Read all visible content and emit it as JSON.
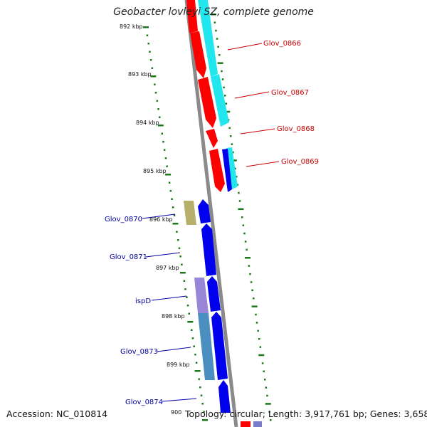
{
  "title": "Geobacter lovleyi SZ, complete genome",
  "accession": "Accession: NC_010814",
  "summary": "Topology: circular; Length: 3,917,761 bp; Genes: 3,658",
  "colors": {
    "backbone": "#8a8a8a",
    "tick": "#1a7a1a",
    "forward_gene": "#ff0000",
    "reverse_gene": "#0000ee",
    "forward_label": "#cc0000",
    "reverse_label": "#0000aa",
    "feature_cyan": "#22e6ee",
    "feature_olive": "#b6b06a",
    "feature_purple": "#9a86d8",
    "feature_steel": "#4a8fc0"
  },
  "ticks": [
    {
      "label": "892 kbp"
    },
    {
      "label": "893 kbp"
    },
    {
      "label": "894 kbp"
    },
    {
      "label": "895 kbp"
    },
    {
      "label": "896 kbp"
    },
    {
      "label": "897 kbp"
    },
    {
      "label": "898 kbp"
    },
    {
      "label": "899 kbp"
    },
    {
      "label": "900"
    }
  ],
  "gene_labels": {
    "forward": [
      "Glov_0866",
      "Glov_0867",
      "Glov_0868",
      "Glov_0869"
    ],
    "reverse": [
      "Glov_0870",
      "Glov_0871",
      "ispD",
      "Glov_0873",
      "Glov_0874"
    ]
  }
}
